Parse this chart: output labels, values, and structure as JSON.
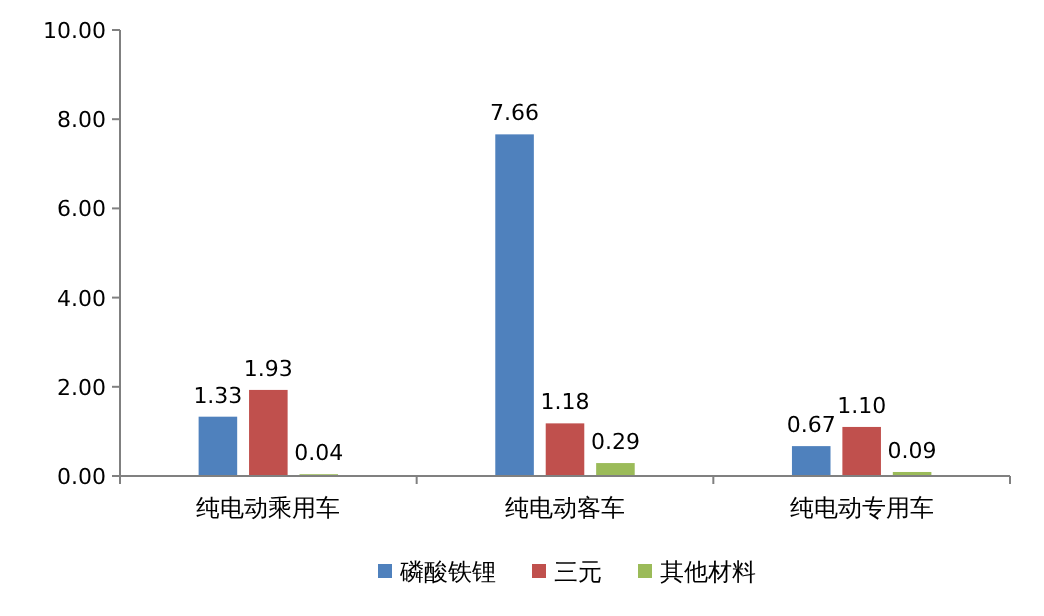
{
  "chart_data": {
    "type": "bar",
    "categories": [
      "纯电动乘用车",
      "纯电动客车",
      "纯电动专用车"
    ],
    "series": [
      {
        "name": "磷酸铁锂",
        "color": "#4f81bd",
        "values": [
          1.33,
          7.66,
          0.67
        ],
        "value_labels": [
          "1.33",
          "7.66",
          "0.67"
        ]
      },
      {
        "name": "三元",
        "color": "#c0504d",
        "values": [
          1.93,
          1.18,
          1.1
        ],
        "value_labels": [
          "1.93",
          "1.18",
          "1.10"
        ]
      },
      {
        "name": "其他材料",
        "color": "#9bbb59",
        "values": [
          0.04,
          0.29,
          0.09
        ],
        "value_labels": [
          "0.04",
          "0.29",
          "0.09"
        ]
      }
    ],
    "ylim": [
      0,
      10
    ],
    "yticks": [
      {
        "value": 0,
        "label": "0.00"
      },
      {
        "value": 2,
        "label": "2.00"
      },
      {
        "value": 4,
        "label": "4.00"
      },
      {
        "value": 6,
        "label": "6.00"
      },
      {
        "value": 8,
        "label": "8.00"
      },
      {
        "value": 10,
        "label": "10.00"
      }
    ],
    "grid": false,
    "legend": "bottom"
  }
}
